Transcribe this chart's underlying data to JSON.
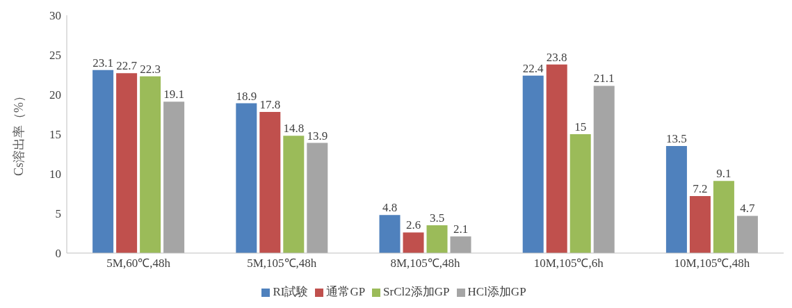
{
  "chart_data": {
    "type": "bar",
    "ylabel": "Cs溶出率（%）",
    "categories": [
      "5M,60℃,48h",
      "5M,105℃,48h",
      "8M,105℃,48h",
      "10M,105℃,6h",
      "10M,105℃,48h"
    ],
    "series": [
      {
        "name": "RI試験",
        "color": "#4f81bd",
        "values": [
          23.1,
          18.9,
          4.8,
          22.4,
          13.5
        ]
      },
      {
        "name": "通常GP",
        "color": "#c0504d",
        "values": [
          22.7,
          17.8,
          2.6,
          23.8,
          7.2
        ]
      },
      {
        "name": "SrCl2添加GP",
        "color": "#9bbb59",
        "values": [
          22.3,
          14.8,
          3.5,
          15,
          9.1
        ]
      },
      {
        "name": "HCl添加GP",
        "color": "#a5a5a5",
        "values": [
          19.1,
          13.9,
          2.1,
          21.1,
          4.7
        ]
      }
    ],
    "ylim": [
      0,
      30
    ],
    "yticks": [
      0,
      5,
      10,
      15,
      20,
      25,
      30
    ],
    "grid": false,
    "legend": "bottom",
    "data_labels": true
  }
}
